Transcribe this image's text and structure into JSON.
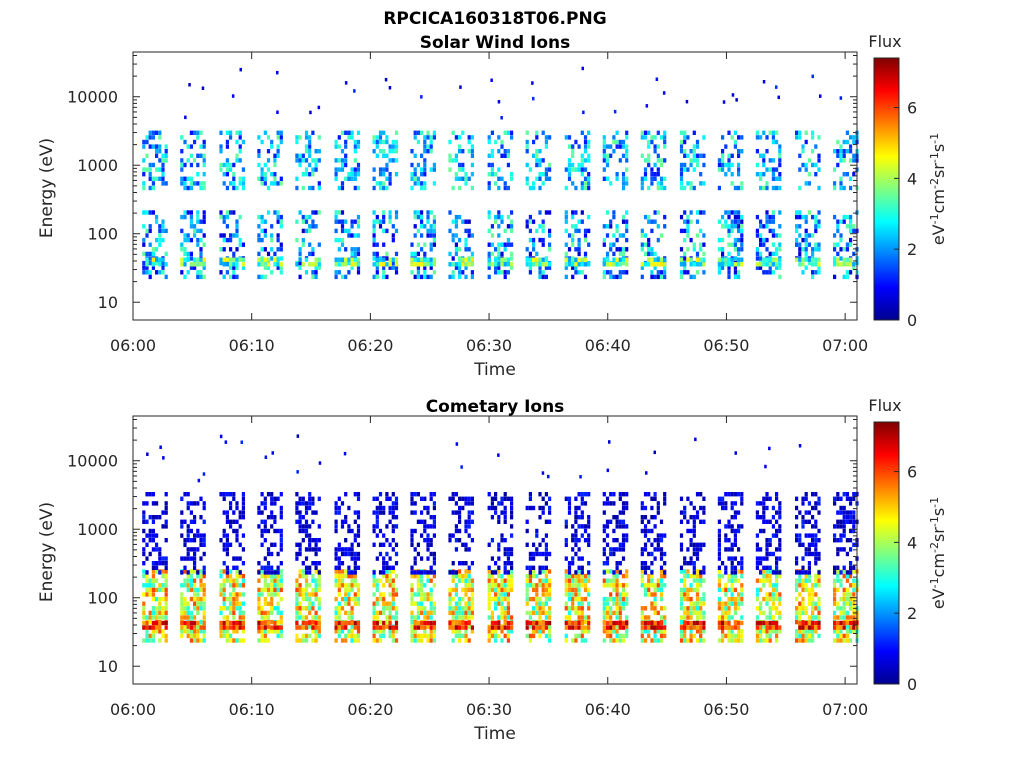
{
  "figure": {
    "title": "RPCICA160318T06.PNG"
  },
  "colormap": {
    "name": "jet",
    "stops": [
      "#00008f",
      "#0000ff",
      "#0080ff",
      "#00ffff",
      "#80ff80",
      "#ffff00",
      "#ff8000",
      "#ff0000",
      "#800000"
    ]
  },
  "chart_data": [
    {
      "type": "heatmap",
      "title": "Solar Wind Ions",
      "xlabel": "Time",
      "ylabel": "Energy (eV)",
      "x_ticks": [
        "06:00",
        "06:10",
        "06:20",
        "06:30",
        "06:40",
        "06:50",
        "07:00"
      ],
      "x_range_minutes": [
        0,
        61
      ],
      "y_scale": "log",
      "y_ticks": [
        "10",
        "100",
        "1000",
        "10000"
      ],
      "y_range": [
        5.5,
        45000
      ],
      "colorbar": {
        "title": "Flux",
        "label_base": "eV",
        "label_units": [
          [
            "-1",
            "cm"
          ],
          [
            "-2",
            "sr"
          ],
          [
            "-1",
            "s"
          ],
          [
            "-1",
            ""
          ]
        ],
        "range": [
          0,
          7.4
        ],
        "ticks": [
          "0",
          "2",
          "4",
          "6"
        ]
      },
      "sweep_period_minutes": 3.2,
      "sweep_centers_minutes": [
        1.8,
        5.0,
        8.3,
        11.5,
        14.7,
        18.0,
        21.2,
        24.4,
        27.6,
        30.9,
        34.1,
        37.4,
        40.6,
        43.8,
        47.1,
        50.3,
        53.5,
        56.8,
        60.0
      ],
      "bands": [
        {
          "e_min": 25,
          "e_max": 220,
          "flux_min": 0.4,
          "flux_max": 3.6
        },
        {
          "e_min": 38,
          "e_max": 45,
          "flux_min": 2.0,
          "flux_max": 4.8
        },
        {
          "e_min": 450,
          "e_max": 3200,
          "flux_min": 1.0,
          "flux_max": 3.6
        }
      ]
    },
    {
      "type": "heatmap",
      "title": "Cometary Ions",
      "xlabel": "Time",
      "ylabel": "Energy (eV)",
      "x_ticks": [
        "06:00",
        "06:10",
        "06:20",
        "06:30",
        "06:40",
        "06:50",
        "07:00"
      ],
      "x_range_minutes": [
        0,
        61
      ],
      "y_scale": "log",
      "y_ticks": [
        "10",
        "100",
        "1000",
        "10000"
      ],
      "y_range": [
        5.5,
        45000
      ],
      "colorbar": {
        "title": "Flux",
        "label_base": "eV",
        "label_units": [
          [
            "-1",
            "cm"
          ],
          [
            "-2",
            "sr"
          ],
          [
            "-1",
            "s"
          ],
          [
            "-1",
            ""
          ]
        ],
        "range": [
          0,
          7.4
        ],
        "ticks": [
          "0",
          "2",
          "4",
          "6"
        ]
      },
      "sweep_period_minutes": 3.2,
      "sweep_centers_minutes": [
        1.8,
        5.0,
        8.3,
        11.5,
        14.7,
        18.0,
        21.2,
        24.4,
        27.6,
        30.9,
        34.1,
        37.4,
        40.6,
        43.8,
        47.1,
        50.3,
        53.5,
        56.8,
        60.0
      ],
      "bands": [
        {
          "e_min": 25,
          "e_max": 260,
          "flux_min": 2.8,
          "flux_max": 6.0
        },
        {
          "e_min": 38,
          "e_max": 46,
          "flux_min": 5.2,
          "flux_max": 7.2
        },
        {
          "e_min": 250,
          "e_max": 3500,
          "flux_min": 0.1,
          "flux_max": 1.2
        }
      ]
    }
  ]
}
